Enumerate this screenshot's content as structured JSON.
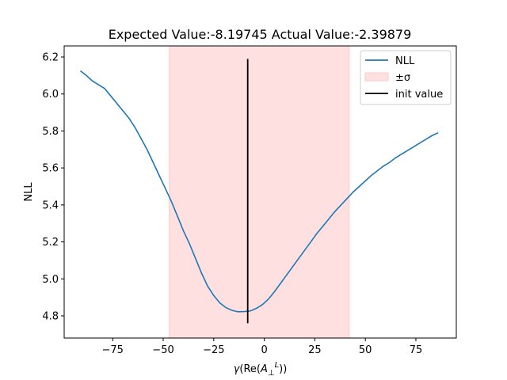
{
  "chart_data": {
    "type": "line",
    "title": "Expected Value:-8.19745 Actual Value:-2.39879",
    "xlabel": "γ(Re(A⊥L))",
    "ylabel": "NLL",
    "xlim": [
      -99,
      95
    ],
    "ylim": [
      4.68,
      6.26
    ],
    "xticks": [
      -75,
      -50,
      -25,
      0,
      25,
      50,
      75
    ],
    "xtick_labels": [
      "−75",
      "−50",
      "−25",
      "0",
      "25",
      "50",
      "75"
    ],
    "yticks": [
      4.8,
      5.0,
      5.2,
      5.4,
      5.6,
      5.8,
      6.0,
      6.2
    ],
    "ytick_labels": [
      "4.8",
      "5.0",
      "5.2",
      "5.4",
      "5.6",
      "5.8",
      "6.0",
      "6.2"
    ],
    "grid": false,
    "legend_position": "top-right",
    "series": [
      {
        "name": "NLL",
        "color": "#1f77b4",
        "x": [
          -91,
          -88,
          -85,
          -82,
          -79,
          -76,
          -73,
          -70,
          -67,
          -64,
          -61,
          -58,
          -55,
          -52,
          -49,
          -46,
          -43,
          -40,
          -37,
          -34,
          -31,
          -28,
          -25,
          -22,
          -19,
          -16,
          -13,
          -10,
          -7,
          -4,
          -1,
          2,
          5,
          8,
          11,
          14,
          17,
          20,
          23,
          26,
          29,
          32,
          35,
          38,
          41,
          44,
          47,
          50,
          53,
          56,
          59,
          62,
          65,
          68,
          71,
          74,
          77,
          80,
          83,
          86
        ],
        "values": [
          6.125,
          6.1,
          6.07,
          6.05,
          6.03,
          5.99,
          5.95,
          5.91,
          5.87,
          5.82,
          5.76,
          5.7,
          5.63,
          5.56,
          5.49,
          5.42,
          5.34,
          5.26,
          5.19,
          5.11,
          5.03,
          4.96,
          4.91,
          4.87,
          4.845,
          4.83,
          4.822,
          4.823,
          4.826,
          4.84,
          4.86,
          4.89,
          4.93,
          4.975,
          5.02,
          5.065,
          5.11,
          5.155,
          5.2,
          5.245,
          5.285,
          5.325,
          5.365,
          5.4,
          5.435,
          5.47,
          5.5,
          5.53,
          5.56,
          5.585,
          5.61,
          5.63,
          5.655,
          5.675,
          5.695,
          5.715,
          5.735,
          5.755,
          5.775,
          5.79
        ]
      }
    ],
    "sigma_band": {
      "name": "±σ",
      "x_from": -47,
      "x_to": 42,
      "color": "#ffe0e0",
      "edge_color": "#ffc9c9"
    },
    "init_value": {
      "name": "init value",
      "x": -8.19745,
      "y_from": 4.76,
      "y_to": 6.19,
      "color": "#000000"
    }
  }
}
